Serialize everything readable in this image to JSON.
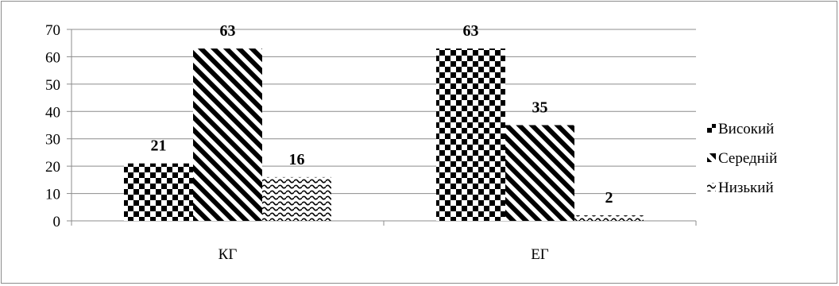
{
  "chart_data": {
    "type": "bar",
    "categories": [
      "КГ",
      "ЕГ"
    ],
    "series": [
      {
        "name": "Високий",
        "values": [
          21,
          63
        ],
        "pattern": "checker"
      },
      {
        "name": "Середній",
        "values": [
          63,
          35
        ],
        "pattern": "diagonal"
      },
      {
        "name": "Низький",
        "values": [
          16,
          2
        ],
        "pattern": "wave"
      }
    ],
    "ylim": [
      0,
      70
    ],
    "yticks": [
      0,
      10,
      20,
      30,
      40,
      50,
      60,
      70
    ],
    "grid": true,
    "legend": "right",
    "data_labels": true,
    "title": "",
    "xlabel": "",
    "ylabel": ""
  }
}
